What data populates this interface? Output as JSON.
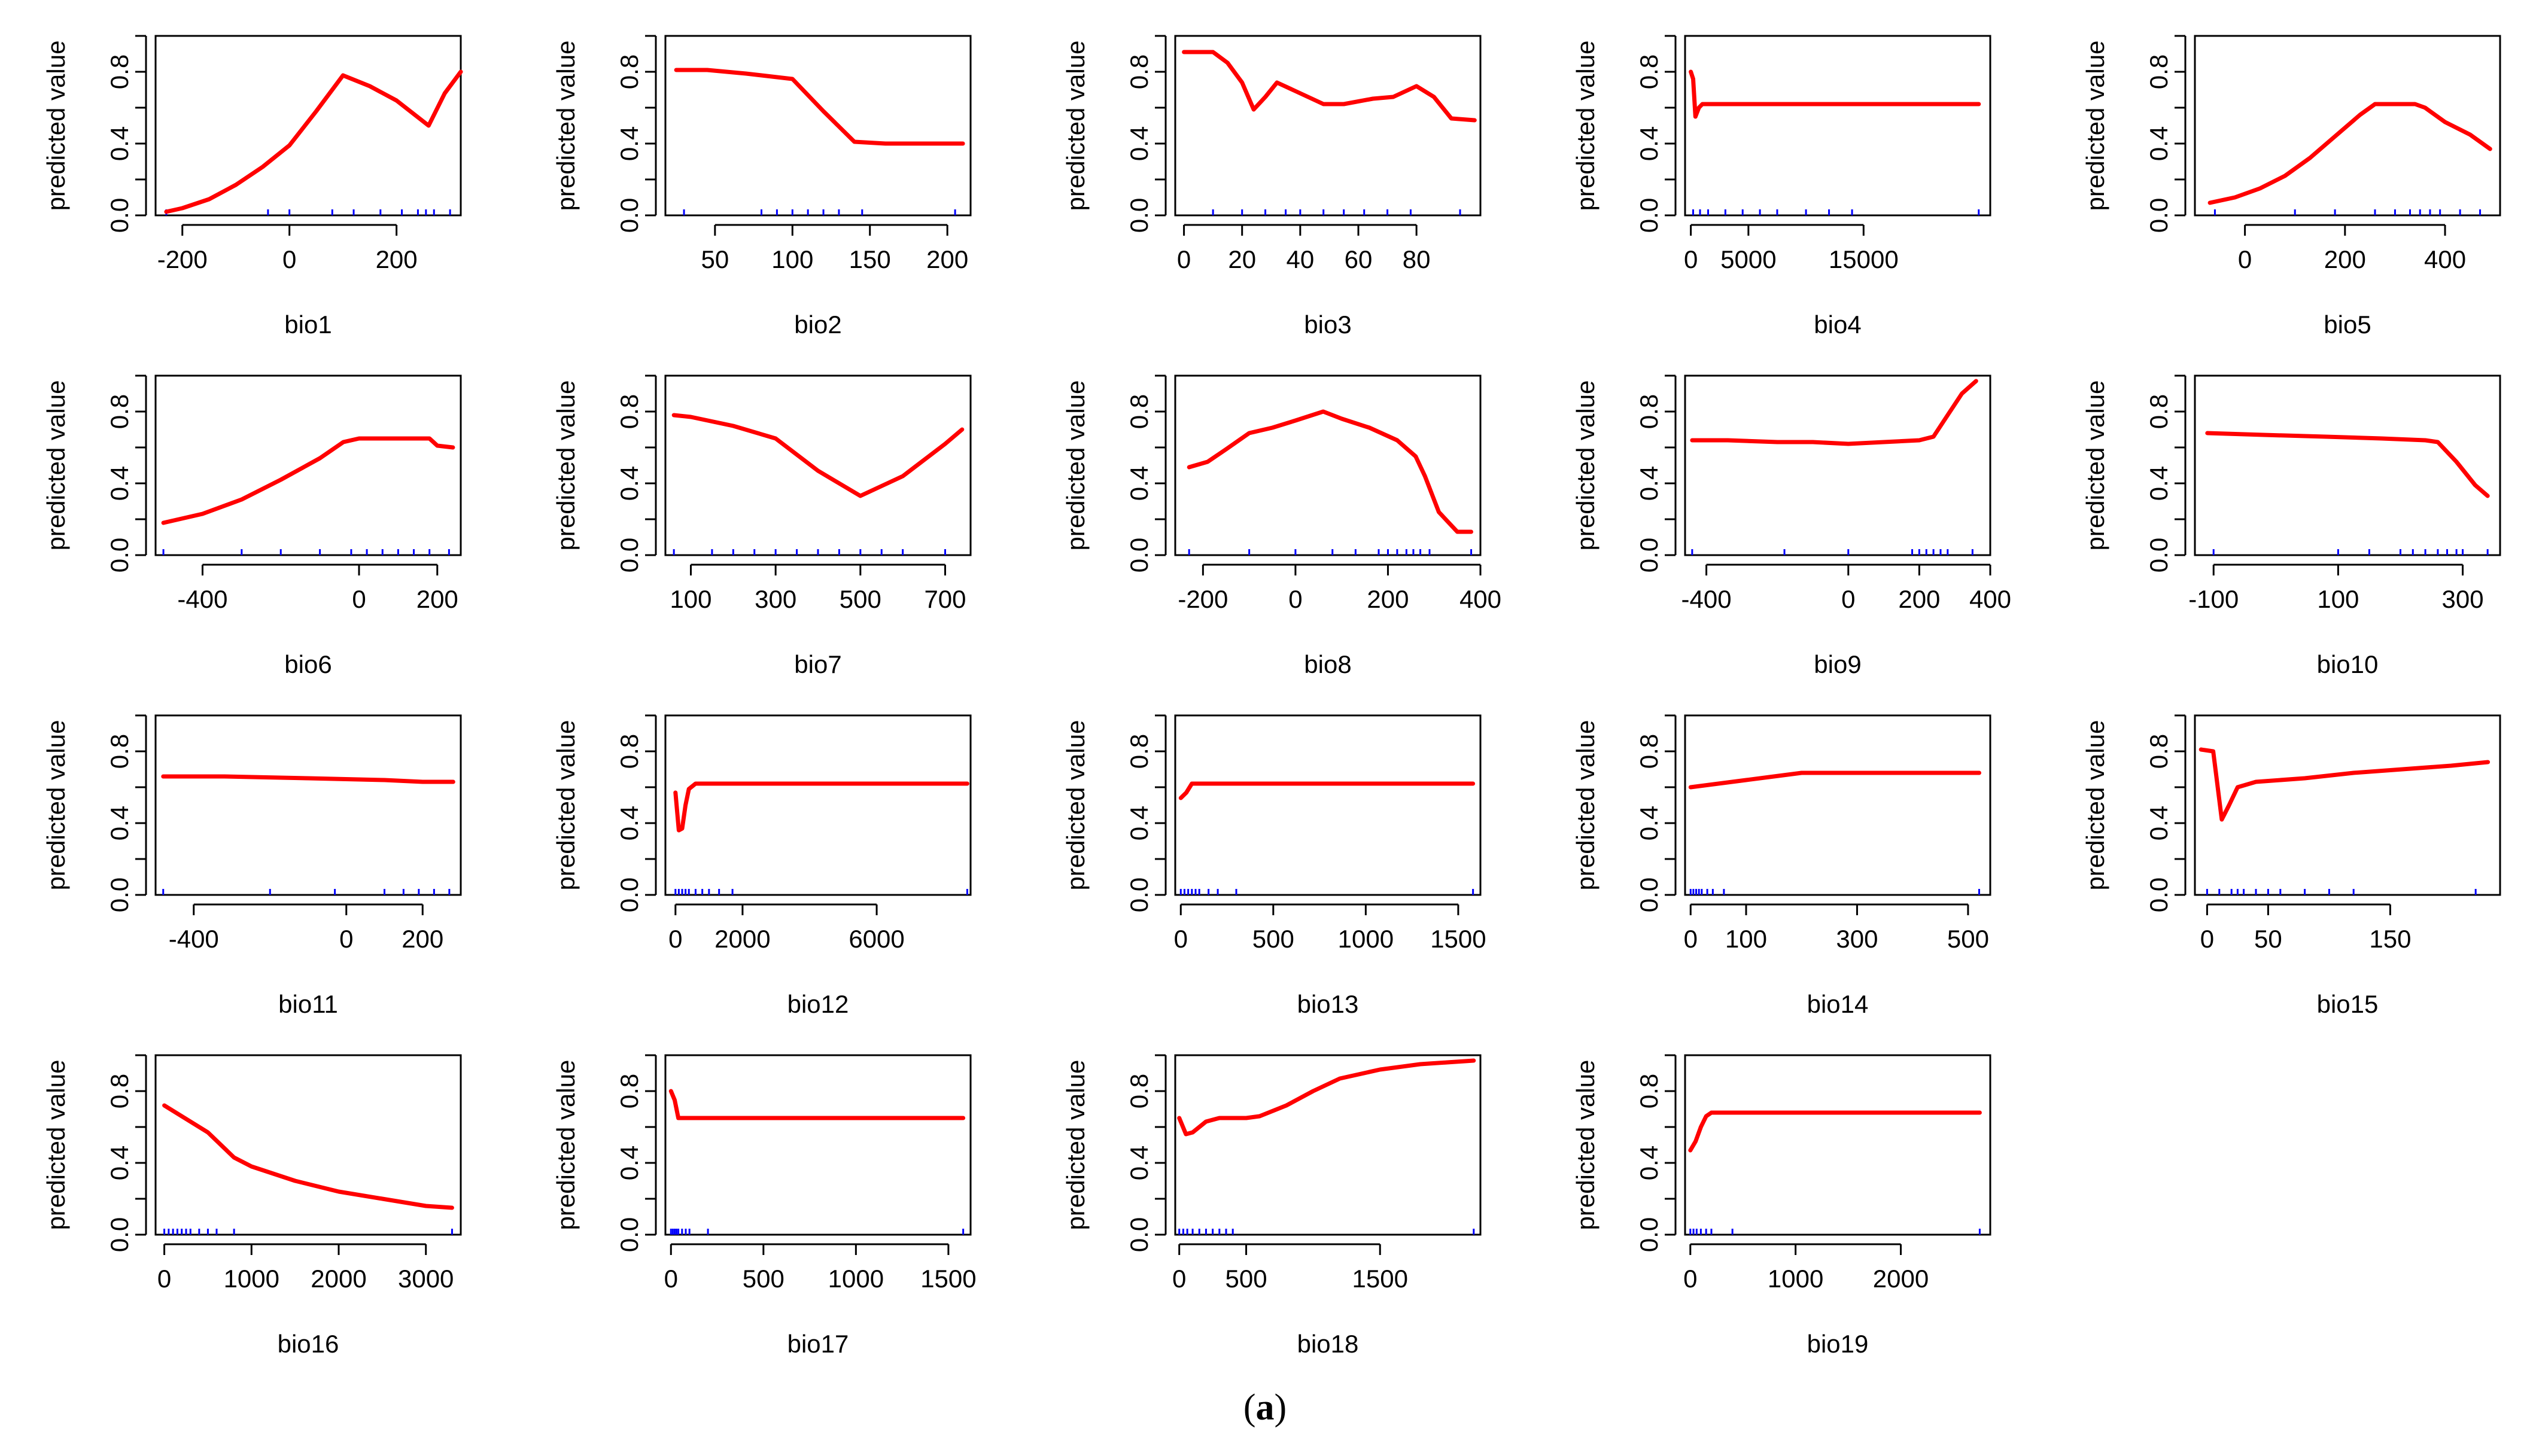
{
  "figure": {
    "caption_open": "(",
    "caption_label": "a",
    "caption_close": ")",
    "line_color": "#ff0000",
    "rug_color": "#0000ff"
  },
  "chart_data": [
    {
      "type": "line",
      "title": "",
      "xlabel": "bio1",
      "ylabel": "predicted value",
      "xlim": [
        -250,
        320
      ],
      "ylim": [
        0,
        1
      ],
      "xticks": [
        -200,
        0,
        200
      ],
      "yticks": [
        0.0,
        0.4,
        0.8
      ],
      "yticks_minor": [
        0.2,
        0.6,
        1.0
      ],
      "x": [
        -230,
        -200,
        -150,
        -100,
        -50,
        0,
        50,
        100,
        150,
        200,
        260,
        290,
        320
      ],
      "y": [
        0.02,
        0.04,
        0.09,
        0.17,
        0.27,
        0.39,
        0.58,
        0.78,
        0.72,
        0.64,
        0.5,
        0.68,
        0.8
      ],
      "rug": [
        -230,
        -40,
        0,
        80,
        120,
        170,
        210,
        240,
        255,
        270,
        300
      ]
    },
    {
      "type": "line",
      "title": "",
      "xlabel": "bio2",
      "ylabel": "predicted value",
      "xlim": [
        18,
        215
      ],
      "ylim": [
        0,
        1
      ],
      "xticks": [
        50,
        100,
        150,
        200
      ],
      "yticks": [
        0.0,
        0.4,
        0.8
      ],
      "yticks_minor": [
        0.2,
        0.6,
        1.0
      ],
      "x": [
        25,
        45,
        70,
        100,
        120,
        140,
        160,
        210
      ],
      "y": [
        0.81,
        0.81,
        0.79,
        0.76,
        0.58,
        0.41,
        0.4,
        0.4
      ],
      "rug": [
        30,
        80,
        90,
        100,
        110,
        120,
        130,
        145,
        205
      ]
    },
    {
      "type": "line",
      "title": "",
      "xlabel": "bio3",
      "ylabel": "predicted value",
      "xlim": [
        -3,
        102
      ],
      "ylim": [
        0,
        1
      ],
      "xticks": [
        0,
        20,
        40,
        60,
        80
      ],
      "yticks": [
        0.0,
        0.4,
        0.8
      ],
      "yticks_minor": [
        0.2,
        0.6,
        1.0
      ],
      "x": [
        0,
        10,
        15,
        20,
        24,
        28,
        32,
        40,
        48,
        55,
        65,
        72,
        80,
        86,
        92,
        100
      ],
      "y": [
        0.91,
        0.91,
        0.85,
        0.74,
        0.59,
        0.66,
        0.74,
        0.68,
        0.62,
        0.62,
        0.65,
        0.66,
        0.72,
        0.66,
        0.54,
        0.53
      ],
      "rug": [
        10,
        20,
        28,
        35,
        40,
        48,
        55,
        62,
        70,
        78,
        95
      ]
    },
    {
      "type": "line",
      "title": "",
      "xlabel": "bio4",
      "ylabel": "predicted value",
      "xlim": [
        -500,
        26000
      ],
      "ylim": [
        0,
        1
      ],
      "xticks": [
        0,
        5000,
        15000
      ],
      "yticks": [
        0.0,
        0.4,
        0.8
      ],
      "yticks_minor": [
        0.2,
        0.6,
        1.0
      ],
      "x": [
        0,
        200,
        400,
        700,
        1000,
        3000,
        10000,
        25000
      ],
      "y": [
        0.8,
        0.76,
        0.55,
        0.6,
        0.62,
        0.62,
        0.62,
        0.62
      ],
      "rug": [
        200,
        800,
        1500,
        3000,
        4500,
        6000,
        7500,
        10000,
        12000,
        14000,
        25000
      ]
    },
    {
      "type": "line",
      "title": "",
      "xlabel": "bio5",
      "ylabel": "predicted value",
      "xlim": [
        -100,
        510
      ],
      "ylim": [
        0,
        1
      ],
      "xticks": [
        0,
        200,
        400
      ],
      "yticks": [
        0.0,
        0.4,
        0.8
      ],
      "yticks_minor": [
        0.2,
        0.6,
        1.0
      ],
      "x": [
        -70,
        -20,
        30,
        80,
        130,
        180,
        230,
        260,
        340,
        360,
        400,
        450,
        490
      ],
      "y": [
        0.07,
        0.1,
        0.15,
        0.22,
        0.32,
        0.44,
        0.56,
        0.62,
        0.62,
        0.6,
        0.52,
        0.45,
        0.37
      ],
      "rug": [
        -60,
        100,
        180,
        260,
        300,
        330,
        350,
        370,
        390,
        430,
        470
      ]
    },
    {
      "type": "line",
      "title": "",
      "xlabel": "bio6",
      "ylabel": "predicted value",
      "xlim": [
        -520,
        260
      ],
      "ylim": [
        0,
        1
      ],
      "xticks": [
        -400,
        0,
        200
      ],
      "yticks": [
        0.0,
        0.4,
        0.8
      ],
      "yticks_minor": [
        0.2,
        0.6,
        1.0
      ],
      "x": [
        -500,
        -400,
        -300,
        -200,
        -100,
        -40,
        0,
        100,
        180,
        200,
        240
      ],
      "y": [
        0.18,
        0.23,
        0.31,
        0.42,
        0.54,
        0.63,
        0.65,
        0.65,
        0.65,
        0.61,
        0.6
      ],
      "rug": [
        -500,
        -300,
        -200,
        -100,
        -20,
        20,
        60,
        100,
        140,
        180,
        230
      ]
    },
    {
      "type": "line",
      "title": "",
      "xlabel": "bio7",
      "ylabel": "predicted value",
      "xlim": [
        40,
        760
      ],
      "ylim": [
        0,
        1
      ],
      "xticks": [
        100,
        300,
        500,
        700
      ],
      "yticks": [
        0.0,
        0.4,
        0.8
      ],
      "yticks_minor": [
        0.2,
        0.6,
        1.0
      ],
      "x": [
        60,
        100,
        200,
        300,
        400,
        500,
        600,
        700,
        740
      ],
      "y": [
        0.78,
        0.77,
        0.72,
        0.65,
        0.47,
        0.33,
        0.44,
        0.62,
        0.7
      ],
      "rug": [
        60,
        150,
        200,
        250,
        300,
        350,
        400,
        450,
        500,
        550,
        600,
        700
      ]
    },
    {
      "type": "line",
      "title": "",
      "xlabel": "bio8",
      "ylabel": "predicted value",
      "xlim": [
        -260,
        400
      ],
      "ylim": [
        0,
        1
      ],
      "xticks": [
        -200,
        0,
        200,
        400
      ],
      "yticks": [
        0.0,
        0.4,
        0.8
      ],
      "yticks_minor": [
        0.2,
        0.6,
        1.0
      ],
      "x": [
        -230,
        -190,
        -150,
        -100,
        -50,
        0,
        60,
        100,
        160,
        220,
        260,
        280,
        310,
        350,
        380
      ],
      "y": [
        0.49,
        0.52,
        0.59,
        0.68,
        0.71,
        0.75,
        0.8,
        0.76,
        0.71,
        0.64,
        0.55,
        0.44,
        0.24,
        0.13,
        0.13
      ],
      "rug": [
        -230,
        -100,
        0,
        80,
        130,
        180,
        200,
        220,
        240,
        255,
        270,
        290,
        380
      ]
    },
    {
      "type": "line",
      "title": "",
      "xlabel": "bio9",
      "ylabel": "predicted value",
      "xlim": [
        -460,
        400
      ],
      "ylim": [
        0,
        1
      ],
      "xticks": [
        -400,
        0,
        200,
        400
      ],
      "yticks": [
        0.0,
        0.4,
        0.8
      ],
      "yticks_minor": [
        0.2,
        0.6,
        1.0
      ],
      "x": [
        -440,
        -340,
        -200,
        -100,
        0,
        100,
        200,
        240,
        280,
        320,
        360
      ],
      "y": [
        0.64,
        0.64,
        0.63,
        0.63,
        0.62,
        0.63,
        0.64,
        0.66,
        0.78,
        0.9,
        0.97
      ],
      "rug": [
        -440,
        -180,
        0,
        180,
        200,
        220,
        240,
        260,
        280,
        350
      ]
    },
    {
      "type": "line",
      "title": "",
      "xlabel": "bio10",
      "ylabel": "predicted value",
      "xlim": [
        -130,
        360
      ],
      "ylim": [
        0,
        1
      ],
      "xticks": [
        -100,
        100,
        300
      ],
      "yticks": [
        0.0,
        0.4,
        0.8
      ],
      "yticks_minor": [
        0.2,
        0.6,
        1.0
      ],
      "x": [
        -110,
        -20,
        80,
        170,
        240,
        260,
        290,
        320,
        340
      ],
      "y": [
        0.68,
        0.67,
        0.66,
        0.65,
        0.64,
        0.63,
        0.52,
        0.39,
        0.33
      ],
      "rug": [
        -100,
        100,
        150,
        200,
        220,
        240,
        260,
        275,
        290,
        300,
        340
      ]
    },
    {
      "type": "line",
      "title": "",
      "xlabel": "bio11",
      "ylabel": "predicted value",
      "xlim": [
        -500,
        300
      ],
      "ylim": [
        0,
        1
      ],
      "xticks": [
        -400,
        0,
        200
      ],
      "yticks": [
        0.0,
        0.4,
        0.8
      ],
      "yticks_minor": [
        0.2,
        0.6,
        1.0
      ],
      "x": [
        -480,
        -320,
        -100,
        100,
        200,
        280
      ],
      "y": [
        0.66,
        0.66,
        0.65,
        0.64,
        0.63,
        0.63
      ],
      "rug": [
        -480,
        -200,
        -30,
        100,
        150,
        190,
        230,
        270
      ]
    },
    {
      "type": "line",
      "title": "",
      "xlabel": "bio12",
      "ylabel": "predicted value",
      "xlim": [
        -300,
        8800
      ],
      "ylim": [
        0,
        1
      ],
      "xticks": [
        0,
        2000,
        6000
      ],
      "yticks": [
        0.0,
        0.4,
        0.8
      ],
      "yticks_minor": [
        0.2,
        0.6,
        1.0
      ],
      "x": [
        0,
        100,
        200,
        300,
        400,
        600,
        800,
        8700
      ],
      "y": [
        0.57,
        0.36,
        0.37,
        0.5,
        0.59,
        0.62,
        0.62,
        0.62
      ],
      "rug": [
        0,
        100,
        200,
        300,
        400,
        600,
        800,
        1000,
        1300,
        1700,
        8700
      ]
    },
    {
      "type": "line",
      "title": "",
      "xlabel": "bio13",
      "ylabel": "predicted value",
      "xlim": [
        -30,
        1620
      ],
      "ylim": [
        0,
        1
      ],
      "xticks": [
        0,
        500,
        1000,
        1500
      ],
      "yticks": [
        0.0,
        0.4,
        0.8
      ],
      "yticks_minor": [
        0.2,
        0.6,
        1.0
      ],
      "x": [
        0,
        30,
        60,
        100,
        1580
      ],
      "y": [
        0.54,
        0.57,
        0.62,
        0.62,
        0.62
      ],
      "rug": [
        0,
        20,
        40,
        60,
        80,
        100,
        150,
        200,
        300,
        1580
      ]
    },
    {
      "type": "line",
      "title": "",
      "xlabel": "bio14",
      "ylabel": "predicted value",
      "xlim": [
        -10,
        540
      ],
      "ylim": [
        0,
        1
      ],
      "xticks": [
        0,
        100,
        300,
        500
      ],
      "yticks": [
        0.0,
        0.4,
        0.8
      ],
      "yticks_minor": [
        0.2,
        0.6,
        1.0
      ],
      "x": [
        0,
        50,
        100,
        150,
        200,
        300,
        400,
        520
      ],
      "y": [
        0.6,
        0.62,
        0.64,
        0.66,
        0.68,
        0.68,
        0.68,
        0.68
      ],
      "rug": [
        0,
        5,
        10,
        15,
        20,
        30,
        40,
        60,
        520
      ]
    },
    {
      "type": "line",
      "title": "",
      "xlabel": "bio15",
      "ylabel": "predicted value",
      "xlim": [
        -10,
        240
      ],
      "ylim": [
        0,
        1
      ],
      "xticks": [
        0,
        50,
        150
      ],
      "yticks": [
        0.0,
        0.4,
        0.8
      ],
      "yticks_minor": [
        0.2,
        0.6,
        1.0
      ],
      "x": [
        -5,
        5,
        12,
        18,
        25,
        40,
        80,
        120,
        160,
        200,
        230
      ],
      "y": [
        0.81,
        0.8,
        0.42,
        0.5,
        0.6,
        0.63,
        0.65,
        0.68,
        0.7,
        0.72,
        0.74
      ],
      "rug": [
        0,
        10,
        20,
        25,
        30,
        40,
        50,
        60,
        80,
        100,
        120,
        220
      ]
    },
    {
      "type": "line",
      "title": "",
      "xlabel": "bio16",
      "ylabel": "predicted value",
      "xlim": [
        -100,
        3400
      ],
      "ylim": [
        0,
        1
      ],
      "xticks": [
        0,
        1000,
        2000,
        3000
      ],
      "yticks": [
        0.0,
        0.4,
        0.8
      ],
      "yticks_minor": [
        0.2,
        0.6,
        1.0
      ],
      "x": [
        0,
        200,
        500,
        800,
        1000,
        1500,
        2000,
        2500,
        3000,
        3300
      ],
      "y": [
        0.72,
        0.66,
        0.57,
        0.43,
        0.38,
        0.3,
        0.24,
        0.2,
        0.16,
        0.15
      ],
      "rug": [
        0,
        50,
        100,
        150,
        200,
        250,
        300,
        400,
        500,
        600,
        800,
        3300
      ]
    },
    {
      "type": "line",
      "title": "",
      "xlabel": "bio17",
      "ylabel": "predicted value",
      "xlim": [
        -30,
        1620
      ],
      "ylim": [
        0,
        1
      ],
      "xticks": [
        0,
        500,
        1000,
        1500
      ],
      "yticks": [
        0.0,
        0.4,
        0.8
      ],
      "yticks_minor": [
        0.2,
        0.6,
        1.0
      ],
      "x": [
        0,
        20,
        40,
        60,
        1580
      ],
      "y": [
        0.8,
        0.75,
        0.65,
        0.65,
        0.65
      ],
      "rug": [
        0,
        10,
        20,
        30,
        40,
        60,
        80,
        100,
        200,
        1580
      ]
    },
    {
      "type": "line",
      "title": "",
      "xlabel": "bio18",
      "ylabel": "predicted value",
      "xlim": [
        -30,
        2250
      ],
      "ylim": [
        0,
        1
      ],
      "xticks": [
        0,
        500,
        1500
      ],
      "yticks": [
        0.0,
        0.4,
        0.8
      ],
      "yticks_minor": [
        0.2,
        0.6,
        1.0
      ],
      "x": [
        0,
        50,
        100,
        200,
        300,
        500,
        600,
        800,
        1000,
        1200,
        1500,
        1800,
        2000,
        2200
      ],
      "y": [
        0.65,
        0.56,
        0.57,
        0.63,
        0.65,
        0.65,
        0.66,
        0.72,
        0.8,
        0.87,
        0.92,
        0.95,
        0.96,
        0.97
      ],
      "rug": [
        0,
        30,
        60,
        100,
        150,
        200,
        250,
        300,
        350,
        400,
        2200
      ]
    },
    {
      "type": "line",
      "title": "",
      "xlabel": "bio19",
      "ylabel": "predicted value",
      "xlim": [
        -50,
        2850
      ],
      "ylim": [
        0,
        1
      ],
      "xticks": [
        0,
        1000,
        2000
      ],
      "yticks": [
        0.0,
        0.4,
        0.8
      ],
      "yticks_minor": [
        0.2,
        0.6,
        1.0
      ],
      "x": [
        0,
        50,
        100,
        150,
        200,
        2750
      ],
      "y": [
        0.47,
        0.52,
        0.6,
        0.66,
        0.68,
        0.68
      ],
      "rug": [
        0,
        30,
        60,
        100,
        150,
        200,
        400,
        2750
      ]
    }
  ]
}
